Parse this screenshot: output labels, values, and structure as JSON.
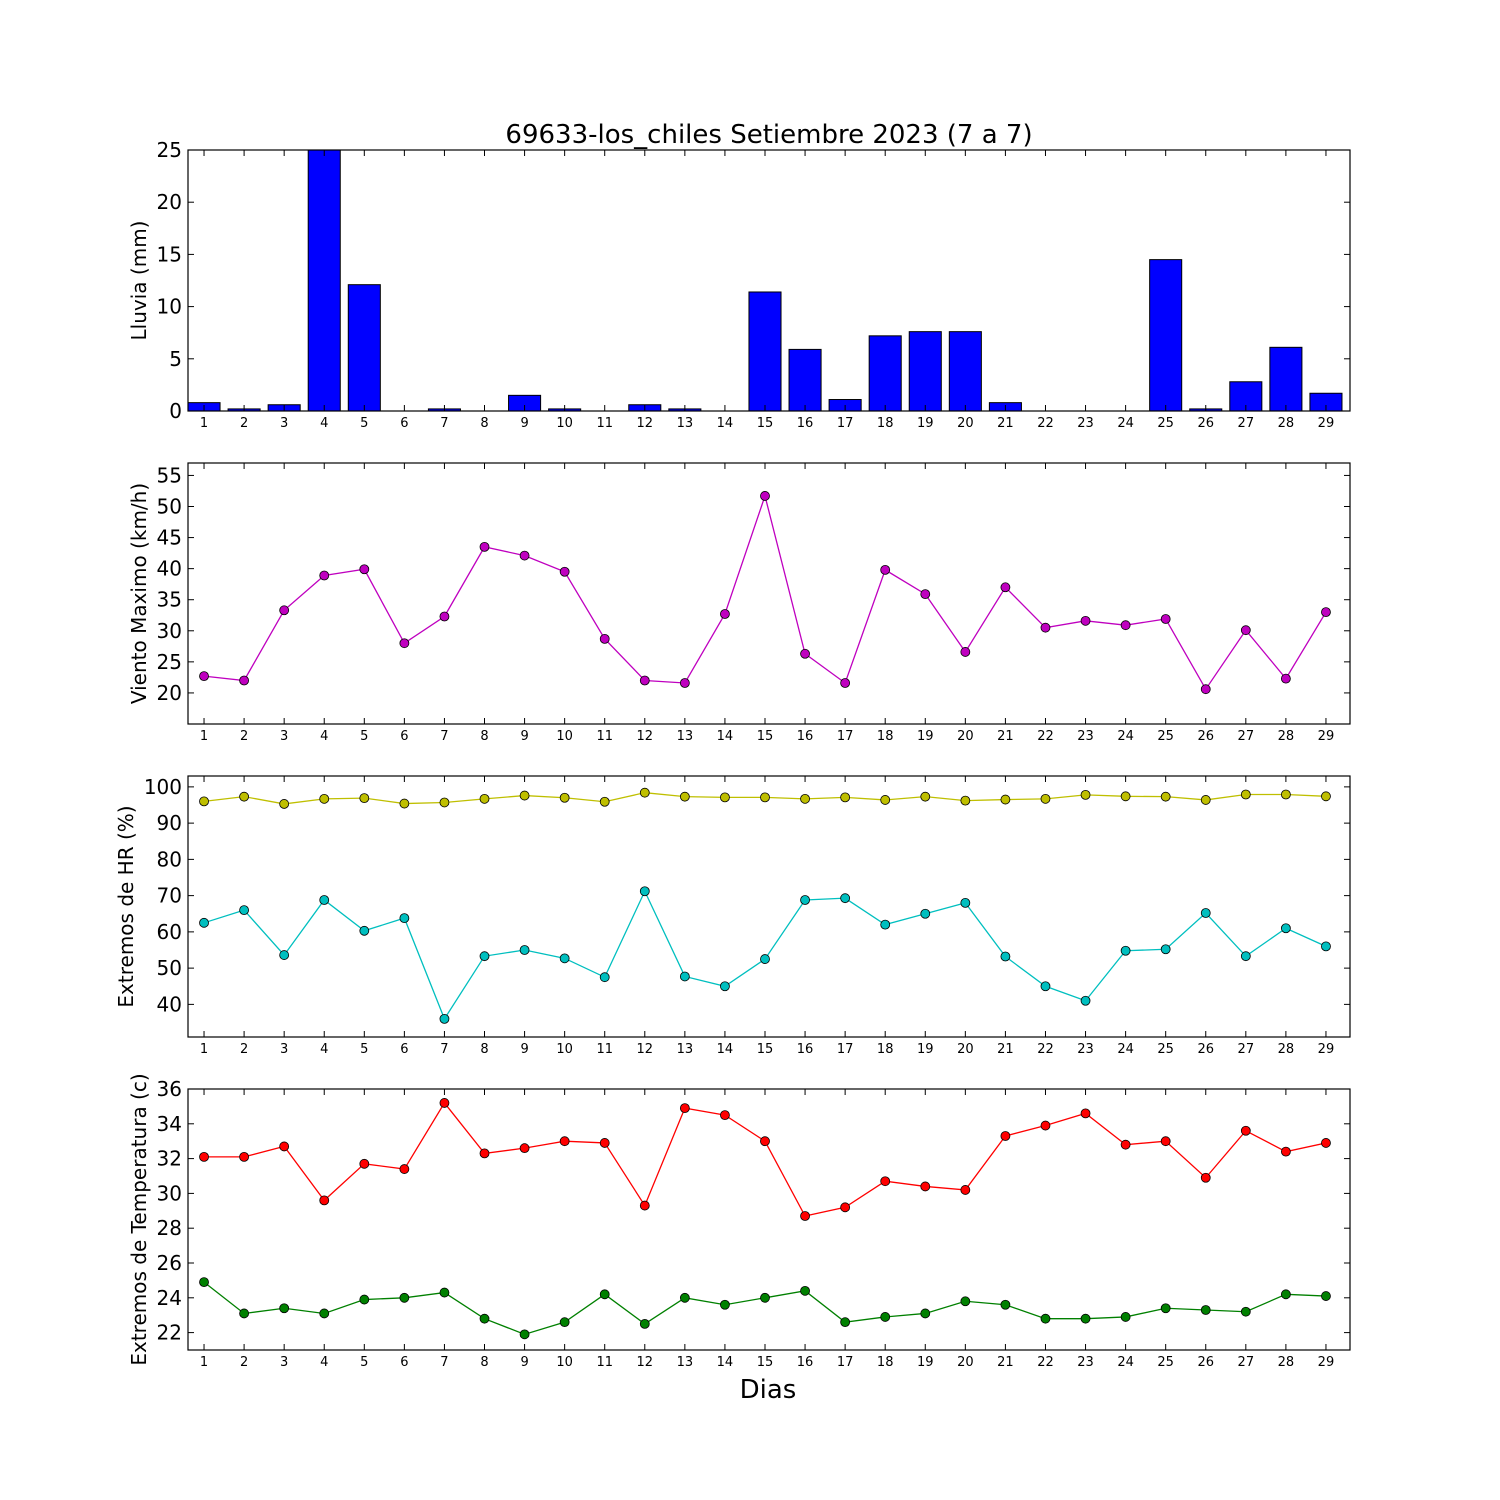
{
  "figure": {
    "title": "69633-los_chiles Setiembre 2023  (7 a 7)",
    "xlabel": "Dias"
  },
  "chart_data": [
    {
      "type": "bar",
      "ylabel": "Lluvia (mm)",
      "ylim": [
        0,
        25
      ],
      "yticks": [
        0,
        5,
        10,
        15,
        20,
        25
      ],
      "x": [
        1,
        2,
        3,
        4,
        5,
        6,
        7,
        8,
        9,
        10,
        11,
        12,
        13,
        14,
        15,
        16,
        17,
        18,
        19,
        20,
        21,
        22,
        23,
        24,
        25,
        26,
        27,
        28,
        29
      ],
      "series": [
        {
          "color": "#0000ff",
          "values": [
            0.8,
            0.2,
            0.6,
            25,
            12.1,
            0,
            0.2,
            0,
            1.5,
            0.2,
            0,
            0.6,
            0.2,
            0,
            11.4,
            5.9,
            1.1,
            7.2,
            7.6,
            7.6,
            0.8,
            0,
            0,
            0,
            14.5,
            0.2,
            2.8,
            6.1,
            1.7
          ]
        }
      ]
    },
    {
      "type": "line",
      "ylabel": "Viento Maximo (km/h)",
      "ylim": [
        15,
        57
      ],
      "yticks": [
        20,
        25,
        30,
        35,
        40,
        45,
        50,
        55
      ],
      "x": [
        1,
        2,
        3,
        4,
        5,
        6,
        7,
        8,
        9,
        10,
        11,
        12,
        13,
        14,
        15,
        16,
        17,
        18,
        19,
        20,
        21,
        22,
        23,
        24,
        25,
        26,
        27,
        28,
        29
      ],
      "series": [
        {
          "color": "#bf00bf",
          "values": [
            22.7,
            22.0,
            33.3,
            38.9,
            39.9,
            28.0,
            32.3,
            43.5,
            42.1,
            39.5,
            28.7,
            22.0,
            21.6,
            32.7,
            51.7,
            26.3,
            21.6,
            39.8,
            35.9,
            26.6,
            37.0,
            30.5,
            31.6,
            30.9,
            31.9,
            20.6,
            30.1,
            22.3,
            33.0
          ]
        }
      ]
    },
    {
      "type": "line",
      "ylabel": "Extremos de HR (%)",
      "ylim": [
        31,
        103
      ],
      "yticks": [
        40,
        50,
        60,
        70,
        80,
        90,
        100
      ],
      "x": [
        1,
        2,
        3,
        4,
        5,
        6,
        7,
        8,
        9,
        10,
        11,
        12,
        13,
        14,
        15,
        16,
        17,
        18,
        19,
        20,
        21,
        22,
        23,
        24,
        25,
        26,
        27,
        28,
        29
      ],
      "series": [
        {
          "color": "#bfbf00",
          "values": [
            96,
            97.3,
            95.3,
            96.7,
            96.9,
            95.4,
            95.7,
            96.7,
            97.6,
            97.0,
            95.9,
            98.4,
            97.3,
            97.1,
            97.1,
            96.7,
            97.1,
            96.4,
            97.3,
            96.2,
            96.5,
            96.7,
            97.8,
            97.4,
            97.3,
            96.4,
            97.9,
            97.9,
            97.4
          ]
        },
        {
          "color": "#00bfbf",
          "values": [
            62.5,
            66,
            53.6,
            68.8,
            60.3,
            63.8,
            36,
            53.3,
            55,
            52.7,
            47.5,
            71.2,
            47.7,
            45,
            52.5,
            68.8,
            69.3,
            62,
            65,
            68,
            53.2,
            45,
            41,
            54.8,
            55.2,
            65.2,
            53.3,
            61,
            56
          ]
        }
      ]
    },
    {
      "type": "line",
      "ylabel": "Extremos de Temperatura (c)",
      "ylim": [
        21,
        36
      ],
      "yticks": [
        22,
        24,
        26,
        28,
        30,
        32,
        34,
        36
      ],
      "x": [
        1,
        2,
        3,
        4,
        5,
        6,
        7,
        8,
        9,
        10,
        11,
        12,
        13,
        14,
        15,
        16,
        17,
        18,
        19,
        20,
        21,
        22,
        23,
        24,
        25,
        26,
        27,
        28,
        29
      ],
      "series": [
        {
          "color": "#ff0000",
          "values": [
            32.1,
            32.1,
            32.7,
            29.6,
            31.7,
            31.4,
            35.2,
            32.3,
            32.6,
            33.0,
            32.9,
            29.3,
            34.9,
            34.5,
            33.0,
            28.7,
            29.2,
            30.7,
            30.4,
            30.2,
            33.3,
            33.9,
            34.6,
            32.8,
            33.0,
            30.9,
            33.6,
            32.4,
            32.9
          ]
        },
        {
          "color": "#008000",
          "values": [
            24.9,
            23.1,
            23.4,
            23.1,
            23.9,
            24.0,
            24.3,
            22.8,
            21.9,
            22.6,
            24.2,
            22.5,
            24.0,
            23.6,
            24.0,
            24.4,
            22.6,
            22.9,
            23.1,
            23.8,
            23.6,
            22.8,
            22.8,
            22.9,
            23.4,
            23.3,
            23.2,
            24.2,
            24.1
          ]
        }
      ]
    }
  ]
}
